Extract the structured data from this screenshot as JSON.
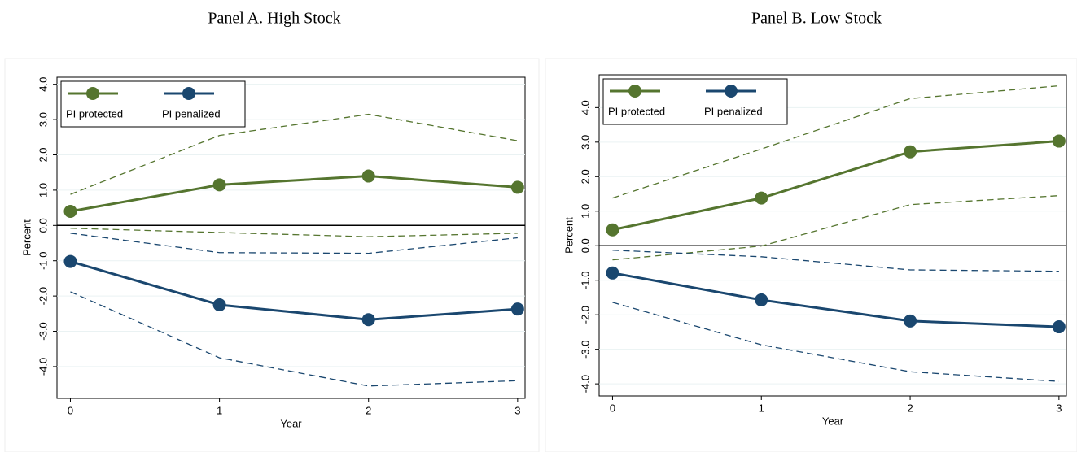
{
  "chart_data": [
    {
      "type": "line",
      "title": "Panel A. High Stock",
      "xlabel": "Year",
      "ylabel": "Percent",
      "x": [
        0,
        1,
        2,
        3
      ],
      "xlim": [
        -0.09,
        3.05
      ],
      "xticks": [
        0,
        1,
        2,
        3
      ],
      "ylim": [
        -4.9,
        4.2
      ],
      "yticks": [
        {
          "value": -4,
          "label": "-4.0"
        },
        {
          "value": -3,
          "label": "-3.0"
        },
        {
          "value": -2,
          "label": "-2.0"
        },
        {
          "value": -1,
          "label": "-1.0"
        },
        {
          "value": 0,
          "label": "0.0"
        },
        {
          "value": 1,
          "label": "1.0"
        },
        {
          "value": 2,
          "label": "2.0"
        },
        {
          "value": 3,
          "label": "3.0"
        },
        {
          "value": 4,
          "label": "4.0"
        }
      ],
      "grid": true,
      "yline": 0,
      "legend": "upper left",
      "series": [
        {
          "name": "PI protected",
          "color": "#55752f",
          "values": [
            0.4,
            1.15,
            1.4,
            1.08
          ],
          "upper": [
            0.88,
            2.55,
            3.15,
            2.4
          ],
          "lower": [
            -0.08,
            -0.2,
            -0.32,
            -0.22
          ]
        },
        {
          "name": "PI penalized",
          "color": "#1a476f",
          "values": [
            -1.02,
            -2.25,
            -2.67,
            -2.37
          ],
          "upper": [
            -0.22,
            -0.77,
            -0.79,
            -0.35
          ],
          "lower": [
            -1.88,
            -3.75,
            -4.55,
            -4.4
          ]
        }
      ]
    },
    {
      "type": "line",
      "title": "Panel B. Low Stock",
      "xlabel": "Year",
      "ylabel": "Percent",
      "x": [
        0,
        1,
        2,
        3
      ],
      "xlim": [
        -0.09,
        3.05
      ],
      "xticks": [
        0,
        1,
        2,
        3
      ],
      "ylim": [
        -4.35,
        4.95
      ],
      "yticks": [
        {
          "value": -4,
          "label": "-4.0"
        },
        {
          "value": -3,
          "label": "-3.0"
        },
        {
          "value": -2,
          "label": "-2.0"
        },
        {
          "value": -1,
          "label": "-1.0"
        },
        {
          "value": 0,
          "label": "0.0"
        },
        {
          "value": 1,
          "label": "1.0"
        },
        {
          "value": 2,
          "label": "2.0"
        },
        {
          "value": 3,
          "label": "3.0"
        },
        {
          "value": 4,
          "label": "4.0"
        }
      ],
      "grid": true,
      "yline": 0,
      "legend": "upper left",
      "series": [
        {
          "name": "PI protected",
          "color": "#55752f",
          "values": [
            0.46,
            1.38,
            2.72,
            3.03
          ],
          "upper": [
            1.38,
            2.8,
            4.26,
            4.63
          ],
          "lower": [
            -0.41,
            -0.01,
            1.19,
            1.45
          ]
        },
        {
          "name": "PI penalized",
          "color": "#1a476f",
          "values": [
            -0.79,
            -1.57,
            -2.18,
            -2.35
          ],
          "upper": [
            -0.13,
            -0.32,
            -0.7,
            -0.74
          ],
          "lower": [
            -1.64,
            -2.87,
            -3.65,
            -3.93
          ]
        }
      ]
    }
  ]
}
